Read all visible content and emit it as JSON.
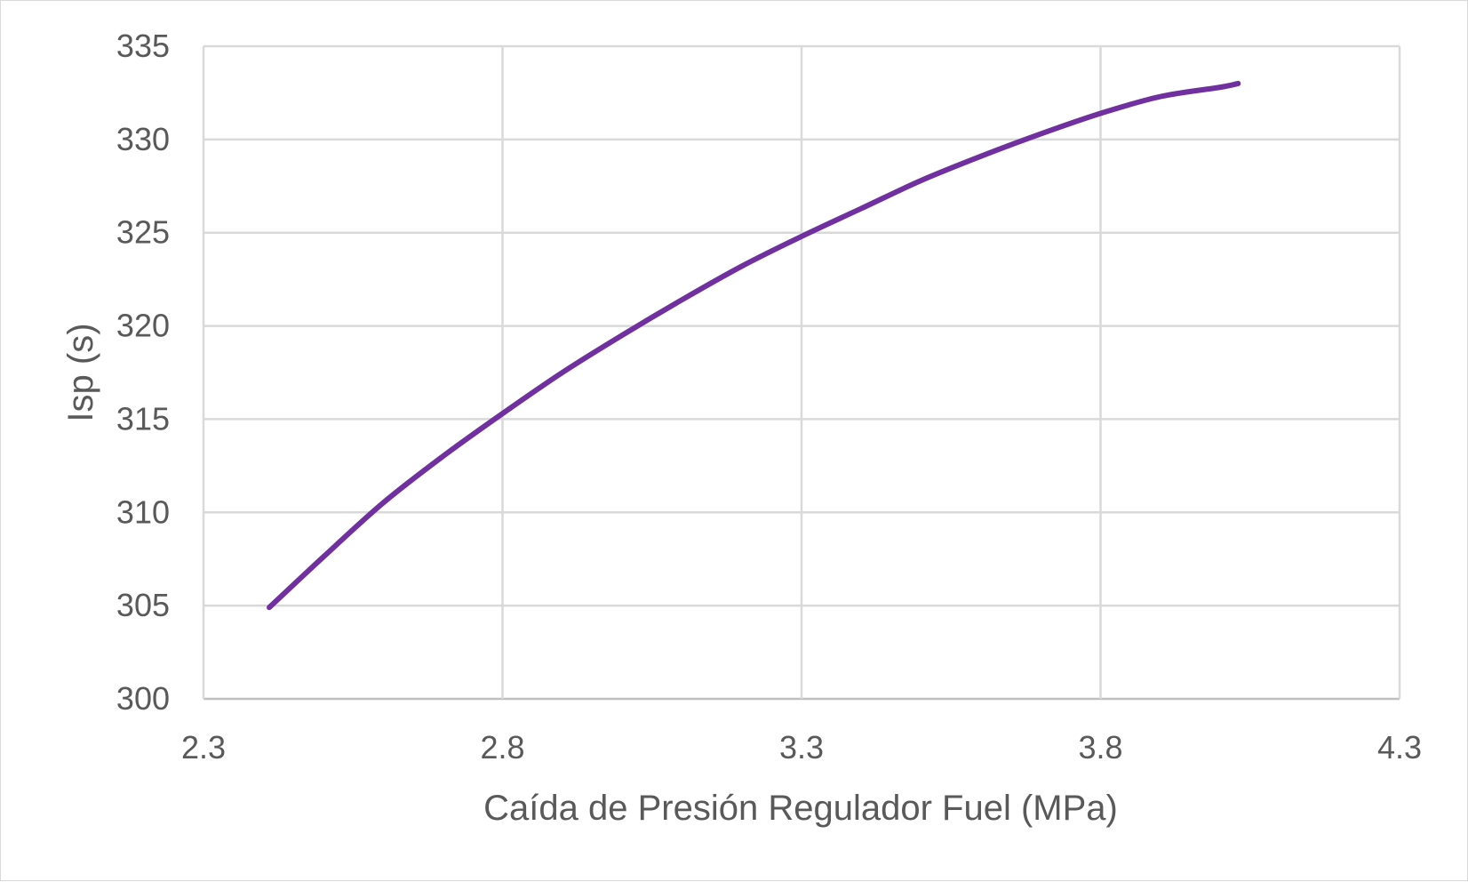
{
  "chart_data": {
    "type": "line",
    "title": "",
    "xlabel": "Caída de Presión Regulador Fuel (MPa)",
    "ylabel": "Isp (s)",
    "xlim": [
      2.3,
      4.3
    ],
    "ylim": [
      300,
      335
    ],
    "x_ticks": [
      "2.3",
      "2.8",
      "3.3",
      "3.8",
      "4.3"
    ],
    "y_ticks": [
      "300",
      "305",
      "310",
      "315",
      "320",
      "325",
      "330",
      "335"
    ],
    "grid": true,
    "legend": "none",
    "series": [
      {
        "color": "#7030a0",
        "x": [
          2.41,
          2.5,
          2.6,
          2.7,
          2.8,
          2.9,
          3.0,
          3.1,
          3.2,
          3.3,
          3.4,
          3.5,
          3.6,
          3.7,
          3.8,
          3.9,
          4.0,
          4.03
        ],
        "y": [
          304.9,
          307.6,
          310.5,
          313.0,
          315.3,
          317.5,
          319.5,
          321.4,
          323.2,
          324.8,
          326.3,
          327.8,
          329.1,
          330.3,
          331.4,
          332.3,
          332.8,
          333.0
        ]
      }
    ]
  }
}
